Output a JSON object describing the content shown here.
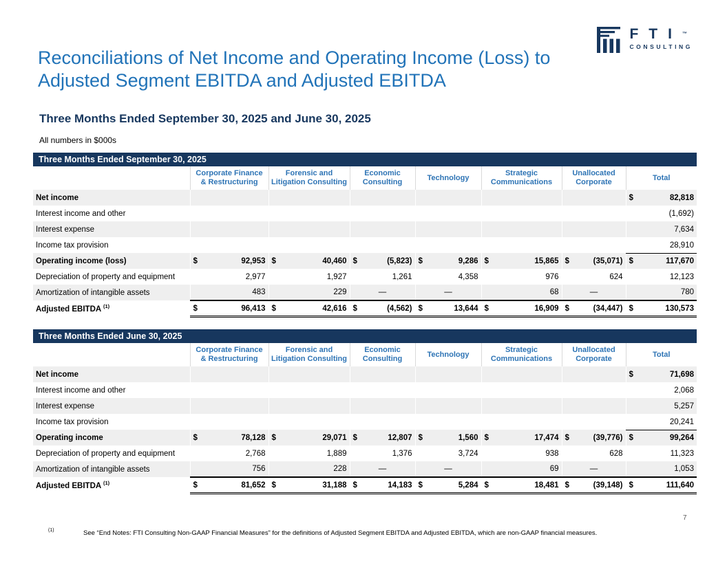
{
  "page": {
    "title": "Reconciliations of Net Income and Operating Income (Loss) to Adjusted Segment EBITDA and Adjusted EBITDA",
    "subtitle": "Three Months Ended September 30, 2025 and June 30, 2025",
    "units_note": "All numbers in $000s",
    "page_number": "7",
    "footnote_marker": "(1)",
    "footnote_text": "See “End Notes: FTI Consulting Non-GAAP Financial Measures” for the definitions of Adjusted Segment EBITDA and Adjusted EBITDA, which are non-GAAP financial measures."
  },
  "logo": {
    "letters": "FTI",
    "trademark": "™",
    "subtext": "CONSULTING"
  },
  "colors": {
    "navy": "#17375E",
    "title_blue": "#2173B8",
    "column_header_blue": "#2E74B5",
    "row_shade": "#EFEFEF"
  },
  "columns": [
    [
      "Corporate Finance",
      "& Restructuring"
    ],
    [
      "Forensic and",
      "Litigation Consulting"
    ],
    [
      "Economic",
      "Consulting"
    ],
    [
      "Technology"
    ],
    [
      "Strategic",
      "Communications"
    ],
    [
      "Unallocated",
      "Corporate"
    ],
    [
      "Total"
    ]
  ],
  "tables": [
    {
      "title": "Three Months Ended September 30, 2025",
      "rows": [
        {
          "label": "Net income",
          "sup": "",
          "bold": true,
          "cells": [
            [
              "",
              ""
            ],
            [
              "",
              ""
            ],
            [
              "",
              ""
            ],
            [
              "",
              ""
            ],
            [
              "",
              ""
            ],
            [
              "",
              ""
            ],
            [
              "$",
              "82,818"
            ]
          ]
        },
        {
          "label": "Interest income and other",
          "sup": "",
          "bold": false,
          "cells": [
            [
              "",
              ""
            ],
            [
              "",
              ""
            ],
            [
              "",
              ""
            ],
            [
              "",
              ""
            ],
            [
              "",
              ""
            ],
            [
              "",
              ""
            ],
            [
              "",
              "(1,692)"
            ]
          ]
        },
        {
          "label": "Interest expense",
          "sup": "",
          "bold": false,
          "cells": [
            [
              "",
              ""
            ],
            [
              "",
              ""
            ],
            [
              "",
              ""
            ],
            [
              "",
              ""
            ],
            [
              "",
              ""
            ],
            [
              "",
              ""
            ],
            [
              "",
              "7,634"
            ]
          ]
        },
        {
          "label": "Income tax provision",
          "sup": "",
          "bold": false,
          "rule_below_total": true,
          "cells": [
            [
              "",
              ""
            ],
            [
              "",
              ""
            ],
            [
              "",
              ""
            ],
            [
              "",
              ""
            ],
            [
              "",
              ""
            ],
            [
              "",
              ""
            ],
            [
              "",
              "28,910"
            ]
          ]
        },
        {
          "label": "Operating income (loss)",
          "sup": "",
          "bold": true,
          "cells": [
            [
              "$",
              "92,953"
            ],
            [
              "$",
              "40,460"
            ],
            [
              "$",
              "(5,823)"
            ],
            [
              "$",
              "9,286"
            ],
            [
              "$",
              "15,865"
            ],
            [
              "$",
              "(35,071)"
            ],
            [
              "$",
              "117,670"
            ]
          ]
        },
        {
          "label": "Depreciation of property and equipment",
          "sup": "",
          "bold": false,
          "cells": [
            [
              "",
              "2,977"
            ],
            [
              "",
              "1,927"
            ],
            [
              "",
              "1,261"
            ],
            [
              "",
              "4,358"
            ],
            [
              "",
              "976"
            ],
            [
              "",
              "624"
            ],
            [
              "",
              "12,123"
            ]
          ]
        },
        {
          "label": "Amortization of intangible assets",
          "sup": "",
          "bold": false,
          "cells": [
            [
              "",
              "483"
            ],
            [
              "",
              "229"
            ],
            [
              "",
              "—"
            ],
            [
              "",
              "—"
            ],
            [
              "",
              "68"
            ],
            [
              "",
              "—"
            ],
            [
              "",
              "780"
            ]
          ]
        },
        {
          "label": "Adjusted EBITDA",
          "sup": "(1)",
          "bold": true,
          "rule_above_values": true,
          "double_below_values": true,
          "cells": [
            [
              "$",
              "96,413"
            ],
            [
              "$",
              "42,616"
            ],
            [
              "$",
              "(4,562)"
            ],
            [
              "$",
              "13,644"
            ],
            [
              "$",
              "16,909"
            ],
            [
              "$",
              "(34,447)"
            ],
            [
              "$",
              "130,573"
            ]
          ]
        }
      ]
    },
    {
      "title": "Three Months Ended June 30, 2025",
      "rows": [
        {
          "label": "Net income",
          "sup": "",
          "bold": true,
          "cells": [
            [
              "",
              ""
            ],
            [
              "",
              ""
            ],
            [
              "",
              ""
            ],
            [
              "",
              ""
            ],
            [
              "",
              ""
            ],
            [
              "",
              ""
            ],
            [
              "$",
              "71,698"
            ]
          ]
        },
        {
          "label": "Interest income and other",
          "sup": "",
          "bold": false,
          "cells": [
            [
              "",
              ""
            ],
            [
              "",
              ""
            ],
            [
              "",
              ""
            ],
            [
              "",
              ""
            ],
            [
              "",
              ""
            ],
            [
              "",
              ""
            ],
            [
              "",
              "2,068"
            ]
          ]
        },
        {
          "label": "Interest expense",
          "sup": "",
          "bold": false,
          "cells": [
            [
              "",
              ""
            ],
            [
              "",
              ""
            ],
            [
              "",
              ""
            ],
            [
              "",
              ""
            ],
            [
              "",
              ""
            ],
            [
              "",
              ""
            ],
            [
              "",
              "5,257"
            ]
          ]
        },
        {
          "label": "Income tax provision",
          "sup": "",
          "bold": false,
          "rule_below_total": true,
          "cells": [
            [
              "",
              ""
            ],
            [
              "",
              ""
            ],
            [
              "",
              ""
            ],
            [
              "",
              ""
            ],
            [
              "",
              ""
            ],
            [
              "",
              ""
            ],
            [
              "",
              "20,241"
            ]
          ]
        },
        {
          "label": "Operating income",
          "sup": "",
          "bold": true,
          "cells": [
            [
              "$",
              "78,128"
            ],
            [
              "$",
              "29,071"
            ],
            [
              "$",
              "12,807"
            ],
            [
              "$",
              "1,560"
            ],
            [
              "$",
              "17,474"
            ],
            [
              "$",
              "(39,776)"
            ],
            [
              "$",
              "99,264"
            ]
          ]
        },
        {
          "label": "Depreciation of property and equipment",
          "sup": "",
          "bold": false,
          "cells": [
            [
              "",
              "2,768"
            ],
            [
              "",
              "1,889"
            ],
            [
              "",
              "1,376"
            ],
            [
              "",
              "3,724"
            ],
            [
              "",
              "938"
            ],
            [
              "",
              "628"
            ],
            [
              "",
              "11,323"
            ]
          ]
        },
        {
          "label": "Amortization of intangible assets",
          "sup": "",
          "bold": false,
          "cells": [
            [
              "",
              "756"
            ],
            [
              "",
              "228"
            ],
            [
              "",
              "—"
            ],
            [
              "",
              "—"
            ],
            [
              "",
              "69"
            ],
            [
              "",
              "—"
            ],
            [
              "",
              "1,053"
            ]
          ]
        },
        {
          "label": "Adjusted EBITDA",
          "sup": "(1)",
          "bold": true,
          "rule_above_values": true,
          "double_below_values": true,
          "cells": [
            [
              "$",
              "81,652"
            ],
            [
              "$",
              "31,188"
            ],
            [
              "$",
              "14,183"
            ],
            [
              "$",
              "5,284"
            ],
            [
              "$",
              "18,481"
            ],
            [
              "$",
              "(39,148)"
            ],
            [
              "$",
              "111,640"
            ]
          ]
        }
      ]
    }
  ]
}
